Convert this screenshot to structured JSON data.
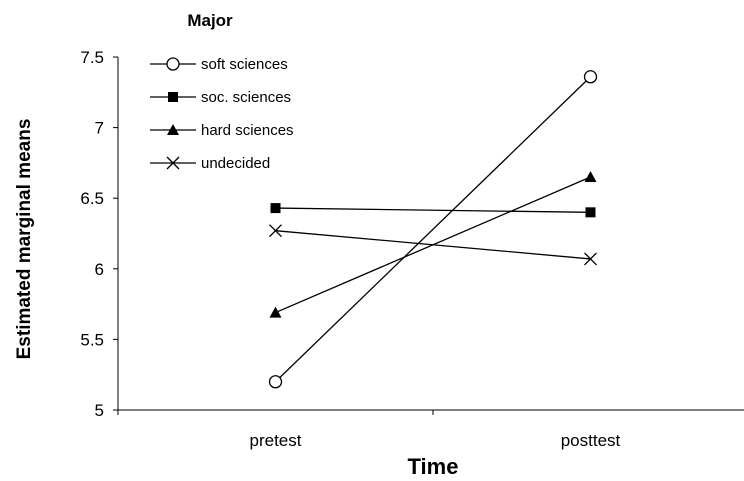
{
  "chart_data": {
    "type": "line",
    "title": "",
    "xlabel": "Time",
    "ylabel": "Estimated marginal means",
    "categories": [
      "pretest",
      "posttest"
    ],
    "ylim": [
      5,
      7.5
    ],
    "yticks": [
      "5",
      "5.5",
      "6",
      "6.5",
      "7",
      "7.5"
    ],
    "legend": {
      "title": "Major",
      "placement": "top-left"
    },
    "series": [
      {
        "name": "soft sciences",
        "marker": "open-circle",
        "values": [
          5.2,
          7.36
        ]
      },
      {
        "name": "soc. sciences",
        "marker": "filled-square",
        "values": [
          6.43,
          6.4
        ]
      },
      {
        "name": "hard sciences",
        "marker": "filled-triangle",
        "values": [
          5.69,
          6.65
        ]
      },
      {
        "name": "undecided",
        "marker": "x-cross",
        "values": [
          6.27,
          6.07
        ]
      }
    ],
    "grid": false,
    "colors": {
      "line": "#000000",
      "background": "#ffffff"
    }
  }
}
